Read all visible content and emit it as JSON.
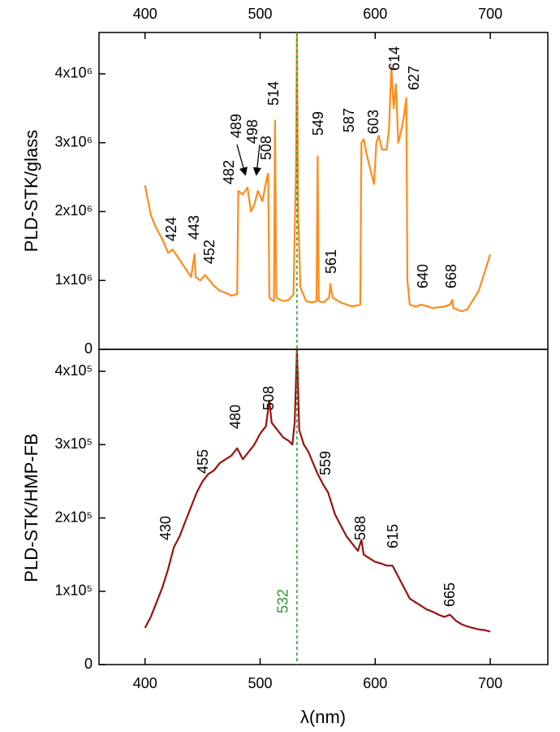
{
  "chart_data": [
    {
      "type": "line",
      "ylabel": "PLD-STK/glass",
      "xaxis_position": "top",
      "xlim": [
        360,
        750
      ],
      "xticks": [
        400,
        500,
        600,
        700
      ],
      "ylim": [
        0,
        4600000
      ],
      "yticks": [
        0,
        {
          "value": 1000000,
          "label": "1x10⁶"
        },
        {
          "value": 2000000,
          "label": "2x10⁶"
        },
        {
          "value": 3000000,
          "label": "3x10⁶"
        },
        {
          "value": 4000000,
          "label": "4x10⁶"
        }
      ],
      "x": [
        400,
        405,
        410,
        415,
        420,
        424,
        428,
        432,
        436,
        440,
        443,
        444,
        448,
        452,
        456,
        460,
        465,
        470,
        475,
        480,
        481,
        485,
        489,
        492,
        495,
        498,
        502,
        506,
        507,
        508,
        510,
        512,
        513,
        514,
        520,
        525,
        529,
        531,
        532,
        533,
        535,
        540,
        545,
        549,
        550,
        551,
        555,
        560,
        561,
        563,
        570,
        580,
        587,
        588,
        590,
        593,
        596,
        599,
        601,
        603,
        606,
        610,
        612,
        614,
        616,
        618,
        620,
        623,
        625,
        627,
        628,
        630,
        635,
        640,
        650,
        660,
        665,
        667,
        668,
        675,
        680,
        690,
        700
      ],
      "series": [
        {
          "name": "PLD-STK/glass",
          "color": "#ff8c1a",
          "values": [
            2380000,
            1950000,
            1750000,
            1600000,
            1400000,
            1450000,
            1350000,
            1250000,
            1150000,
            1050000,
            1380000,
            1050000,
            1000000,
            1080000,
            1000000,
            920000,
            850000,
            820000,
            780000,
            800000,
            2300000,
            2250000,
            2350000,
            2000000,
            2100000,
            2300000,
            2150000,
            2500000,
            2550000,
            750000,
            720000,
            700000,
            3320000,
            750000,
            700000,
            720000,
            800000,
            2500000,
            4600000,
            2000000,
            900000,
            700000,
            680000,
            700000,
            2800000,
            700000,
            680000,
            750000,
            950000,
            750000,
            680000,
            620000,
            650000,
            3000000,
            3050000,
            2800000,
            2600000,
            2400000,
            3000000,
            3100000,
            2900000,
            2900000,
            3200000,
            4100000,
            3500000,
            3850000,
            3000000,
            3200000,
            3400000,
            3650000,
            1000000,
            650000,
            620000,
            650000,
            600000,
            620000,
            650000,
            720000,
            600000,
            550000,
            580000,
            850000,
            1380000
          ]
        }
      ],
      "annotations": [
        "424",
        "443",
        "452",
        "482",
        "489",
        "498",
        "508",
        "514",
        "549",
        "561",
        "587",
        "603",
        "614",
        "627",
        "640",
        "668"
      ]
    },
    {
      "type": "line",
      "ylabel": "PLD-STK/HMP-FB",
      "xlabel": "λ(nm)",
      "xaxis_position": "bottom",
      "xlim": [
        360,
        750
      ],
      "xticks": [
        400,
        500,
        600,
        700
      ],
      "ylim": [
        0,
        430000
      ],
      "yticks": [
        0,
        {
          "value": 100000,
          "label": "1x10⁵"
        },
        {
          "value": 200000,
          "label": "2x10⁵"
        },
        {
          "value": 300000,
          "label": "3x10⁵"
        },
        {
          "value": 400000,
          "label": "4x10⁵"
        }
      ],
      "x": [
        400,
        405,
        410,
        415,
        420,
        425,
        430,
        435,
        440,
        445,
        450,
        455,
        460,
        465,
        470,
        475,
        480,
        485,
        490,
        495,
        500,
        505,
        508,
        510,
        515,
        520,
        525,
        528,
        530,
        532,
        534,
        538,
        542,
        546,
        550,
        555,
        559,
        565,
        570,
        575,
        580,
        585,
        588,
        590,
        595,
        600,
        605,
        610,
        615,
        620,
        625,
        630,
        635,
        640,
        645,
        650,
        655,
        660,
        665,
        670,
        675,
        680,
        685,
        690,
        695,
        700
      ],
      "series": [
        {
          "name": "PLD-STK/HMP-FB",
          "color": "#9b1111",
          "values": [
            50000,
            65000,
            85000,
            105000,
            130000,
            160000,
            175000,
            195000,
            215000,
            235000,
            250000,
            260000,
            265000,
            275000,
            280000,
            285000,
            295000,
            280000,
            290000,
            300000,
            315000,
            325000,
            360000,
            330000,
            320000,
            310000,
            305000,
            300000,
            330000,
            430000,
            320000,
            300000,
            290000,
            275000,
            260000,
            245000,
            235000,
            205000,
            190000,
            175000,
            165000,
            155000,
            170000,
            150000,
            145000,
            140000,
            138000,
            135000,
            135000,
            120000,
            105000,
            90000,
            85000,
            80000,
            75000,
            72000,
            68000,
            65000,
            68000,
            60000,
            55000,
            52000,
            50000,
            48000,
            47000,
            45000
          ]
        }
      ],
      "annotations": [
        "430",
        "455",
        "480",
        "508",
        "559",
        "588",
        "615",
        "665"
      ],
      "reference_line": {
        "value": 532,
        "label": "532",
        "color": "#2a9d2a"
      }
    }
  ]
}
